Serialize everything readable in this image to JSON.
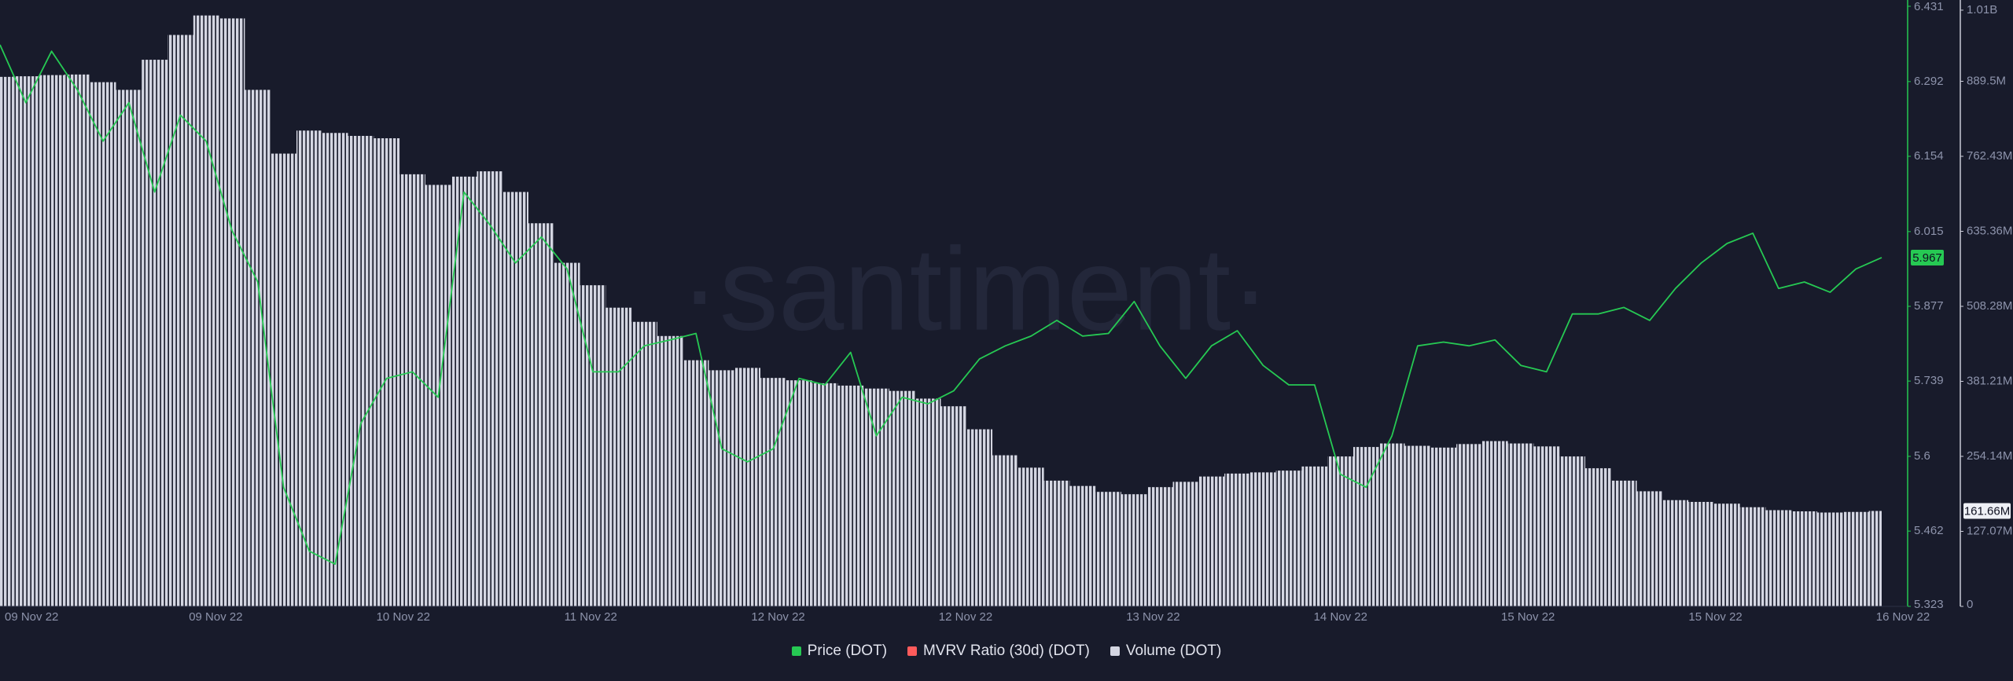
{
  "chart_data": {
    "type": "line",
    "watermark": "·santiment·",
    "x_tick_labels": [
      "09 Nov 22",
      "09 Nov 22",
      "10 Nov 22",
      "11 Nov 22",
      "12 Nov 22",
      "12 Nov 22",
      "13 Nov 22",
      "14 Nov 22",
      "15 Nov 22",
      "15 Nov 22",
      "16 Nov 22"
    ],
    "ylim": [
      5.323,
      6.431
    ],
    "yticks": [
      5.323,
      5.462,
      5.6,
      5.739,
      5.877,
      6.015,
      6.154,
      6.292,
      6.431
    ],
    "y2lim": [
      0,
      1016560000.0
    ],
    "y2ticks": [
      0,
      {
        "value": 127070000.0,
        "label": "127.07M"
      },
      {
        "value": 254140000.0,
        "label": "254.14M"
      },
      {
        "value": 381210000.0,
        "label": "381.21M"
      },
      {
        "value": 508280000.0,
        "label": "508.28M"
      },
      {
        "value": 635360000.0,
        "label": "635.36M"
      },
      {
        "value": 762430000.0,
        "label": "762.43M"
      },
      {
        "value": 889500000.0,
        "label": "889.5M"
      },
      {
        "value": 1010000000.0,
        "label": "1.01B"
      }
    ],
    "grid": false,
    "series": [
      {
        "name": "Price (DOT)",
        "color": "#26c953",
        "type": "line",
        "values": [
          6.36,
          6.253,
          6.348,
          6.277,
          6.182,
          6.253,
          6.088,
          6.23,
          6.182,
          6.017,
          5.922,
          5.543,
          5.425,
          5.401,
          5.661,
          5.744,
          5.756,
          5.709,
          6.088,
          6.028,
          5.957,
          6.005,
          5.946,
          5.756,
          5.756,
          5.804,
          5.815,
          5.827,
          5.614,
          5.59,
          5.614,
          5.744,
          5.732,
          5.792,
          5.638,
          5.709,
          5.697,
          5.721,
          5.78,
          5.804,
          5.822,
          5.851,
          5.822,
          5.827,
          5.886,
          5.804,
          5.744,
          5.804,
          5.832,
          5.768,
          5.732,
          5.732,
          5.567,
          5.543,
          5.638,
          5.804,
          5.811,
          5.804,
          5.815,
          5.768,
          5.756,
          5.863,
          5.863,
          5.875,
          5.851,
          5.91,
          5.957,
          5.993,
          6.012,
          5.91,
          5.922,
          5.903,
          5.946,
          5.967
        ]
      },
      {
        "name": "MVRV Ratio (30d) (DOT)",
        "color": "#ff5b5b"
      },
      {
        "name": "Volume (DOT)",
        "color": "#d4d6e2",
        "type": "bar",
        "axis": "y2",
        "last_value_label": "161.66M",
        "values": [
          897000000.0,
          898000000.0,
          900000000.0,
          901000000.0,
          888000000.0,
          875000000.0,
          926000000.0,
          968000000.0,
          1001000000.0,
          996000000.0,
          875000000.0,
          767000000.0,
          806000000.0,
          802000000.0,
          797000000.0,
          793000000.0,
          732000000.0,
          714000000.0,
          728000000.0,
          737000000.0,
          702000000.0,
          649000000.0,
          582000000.0,
          544000000.0,
          506000000.0,
          482000000.0,
          458000000.0,
          417000000.0,
          400000000.0,
          404000000.0,
          387000000.0,
          383000000.0,
          378000000.0,
          374000000.0,
          369000000.0,
          365000000.0,
          352000000.0,
          339000000.0,
          300000000.0,
          256000000.0,
          235000000.0,
          213000000.0,
          204000000.0,
          194000000.0,
          190000000.0,
          202000000.0,
          211000000.0,
          220000000.0,
          225000000.0,
          227000000.0,
          230000000.0,
          237000000.0,
          254000000.0,
          270000000.0,
          276000000.0,
          272000000.0,
          269000000.0,
          275000000.0,
          280000000.0,
          276000000.0,
          271000000.0,
          254000000.0,
          234000000.0,
          213000000.0,
          195000000.0,
          180000000.0,
          177000000.0,
          174000000.0,
          168000000.0,
          163000000.0,
          161000000.0,
          159000000.0,
          160000000.0,
          161660000.0
        ]
      }
    ]
  }
}
